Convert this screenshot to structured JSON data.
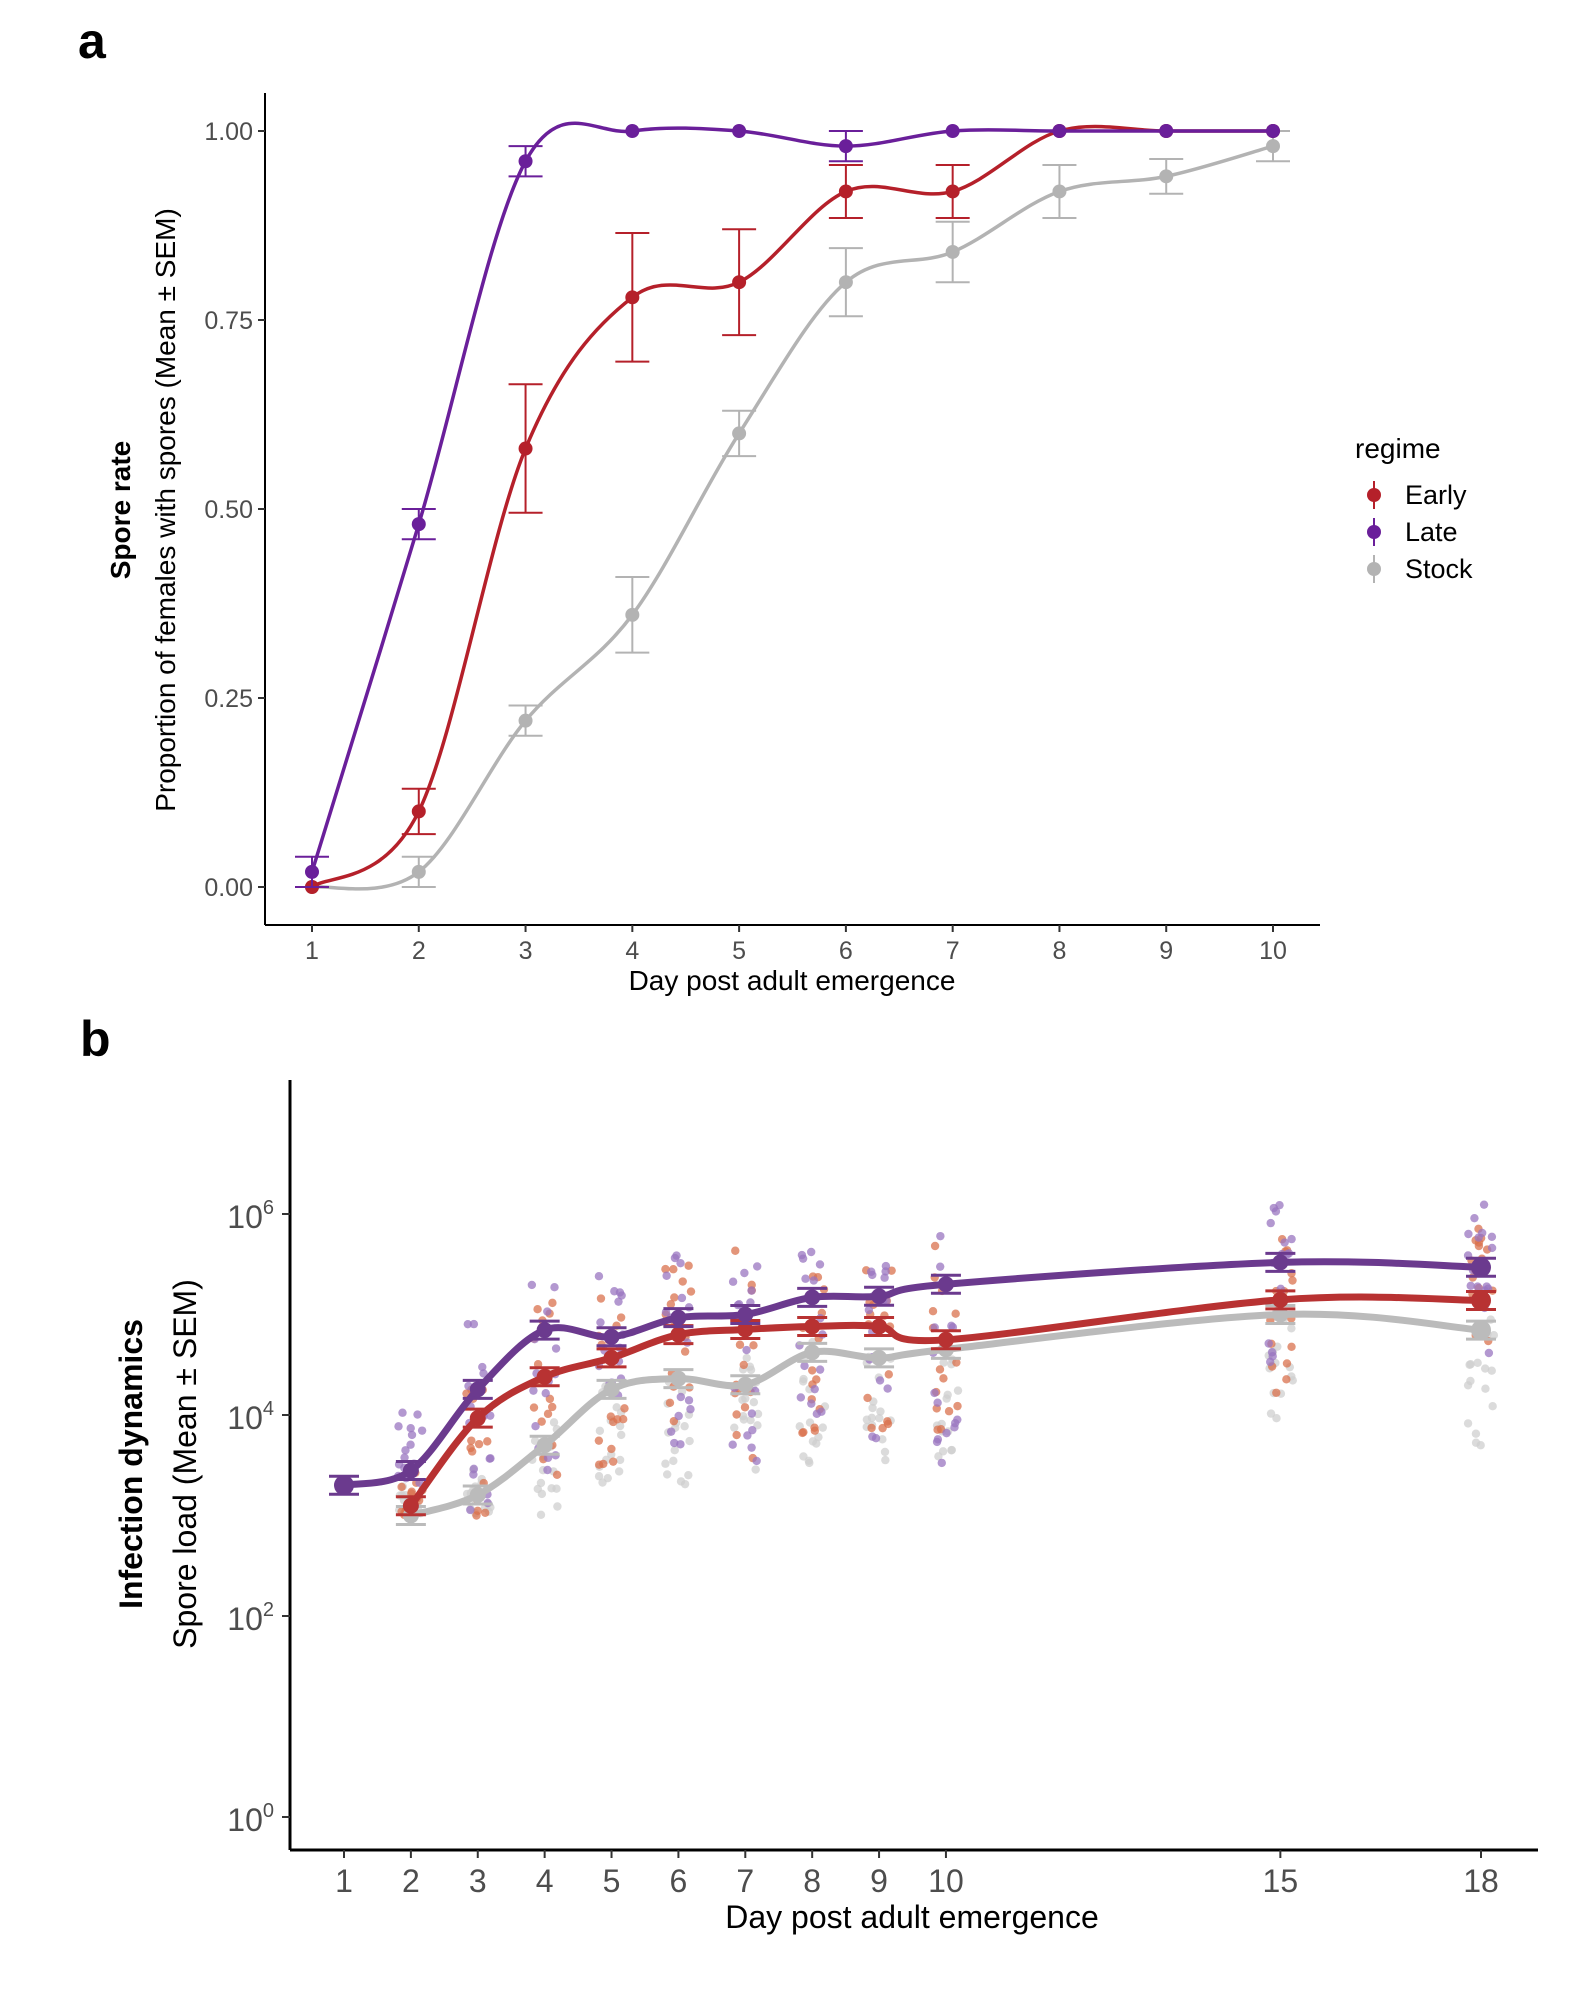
{
  "colors": {
    "Early": "#b5202a",
    "Late": "#6a1f9a",
    "Stock": "#b3b3b3",
    "Early_b": "#b83232",
    "Late_b": "#6b3a8e",
    "Stock_b": "#bbbbbb",
    "Early_raw": "#d9714d",
    "Late_raw": "#9a76c0",
    "Stock_raw": "#cfcfcf"
  },
  "chart_data": [
    {
      "panel_label": "a",
      "type": "line",
      "xlabel": "Day post adult emergence",
      "ylabel_bold": "Spore rate",
      "ylabel": "Proportion of females with spores (Mean ± SEM)",
      "x": [
        1,
        2,
        3,
        4,
        5,
        6,
        7,
        8,
        9,
        10
      ],
      "x_ticks": [
        "1",
        "2",
        "3",
        "4",
        "5",
        "6",
        "7",
        "8",
        "9",
        "10"
      ],
      "y_ticks": [
        "0.00",
        "0.25",
        "0.50",
        "0.75",
        "1.00"
      ],
      "ylim": [
        0,
        1
      ],
      "legend": {
        "title": "regime",
        "position": "right"
      },
      "series": [
        {
          "name": "Early",
          "values": [
            0,
            0.1,
            0.58,
            0.78,
            0.8,
            0.92,
            0.92,
            1.0,
            1.0,
            1.0
          ],
          "sem": [
            0,
            0.03,
            0.085,
            0.085,
            0.07,
            0.035,
            0.035,
            0,
            0,
            0
          ]
        },
        {
          "name": "Late",
          "values": [
            0.02,
            0.48,
            0.96,
            1.0,
            1.0,
            0.98,
            1.0,
            1.0,
            1.0,
            1.0
          ],
          "sem": [
            0.02,
            0.02,
            0.02,
            0,
            0,
            0.02,
            0,
            0,
            0,
            0
          ]
        },
        {
          "name": "Stock",
          "values": [
            0,
            0.02,
            0.22,
            0.36,
            0.6,
            0.8,
            0.84,
            0.92,
            0.94,
            0.98
          ],
          "sem": [
            0,
            0.02,
            0.02,
            0.05,
            0.03,
            0.045,
            0.04,
            0.035,
            0.023,
            0.02
          ]
        }
      ]
    },
    {
      "panel_label": "b",
      "type": "line",
      "xlabel": "Day post adult emergence",
      "ylabel_bold": "Infection dynamics",
      "ylabel": "Spore load (Mean ± SEM)",
      "y_scale": "log10",
      "y_ticks": [
        {
          "base": "10",
          "exp": "0",
          "value": 1
        },
        {
          "base": "10",
          "exp": "2",
          "value": 100
        },
        {
          "base": "10",
          "exp": "4",
          "value": 10000
        },
        {
          "base": "10",
          "exp": "6",
          "value": 1000000
        }
      ],
      "x_ticks": [
        "1",
        "2",
        "3",
        "4",
        "5",
        "6",
        "7",
        "8",
        "9",
        "10",
        "15",
        "18"
      ],
      "xlim": [
        0.5,
        18.7
      ],
      "ylim": [
        0.3,
        20000000
      ],
      "series": [
        {
          "name": "Late",
          "x": [
            1,
            2,
            3,
            4,
            5,
            6,
            7,
            8,
            9,
            10,
            15,
            18
          ],
          "values": [
            2000,
            2800,
            18000,
            70000,
            60000,
            93000,
            100000,
            148000,
            152000,
            200000,
            330000,
            295000
          ],
          "raw_range": [
            null,
            [
              2000,
              11000
            ],
            [
              1000,
              120000
            ],
            [
              2500,
              230000
            ],
            [
              10000,
              250000
            ],
            [
              5000,
              400000
            ],
            [
              3000,
              450000
            ],
            [
              10000,
              450000
            ],
            [
              3000,
              420000
            ],
            [
              3000,
              700000
            ],
            [
              25000,
              1300000
            ],
            [
              30000,
              1400000
            ]
          ]
        },
        {
          "name": "Early",
          "x": [
            2,
            3,
            4,
            5,
            6,
            7,
            8,
            9,
            10,
            15,
            18
          ],
          "values": [
            1250,
            9300,
            24000,
            37000,
            63000,
            71000,
            76000,
            76000,
            56000,
            140000,
            138000
          ],
          "raw_range": [
            [
              1000,
              3000
            ],
            [
              1000,
              40000
            ],
            [
              2500,
              150000
            ],
            [
              3000,
              300000
            ],
            [
              5000,
              350000
            ],
            [
              3000,
              450000
            ],
            [
              5000,
              350000
            ],
            [
              5000,
              300000
            ],
            [
              4000,
              550000
            ],
            [
              15000,
              1000000
            ],
            [
              40000,
              900000
            ]
          ]
        },
        {
          "name": "Stock",
          "x": [
            2,
            3,
            4,
            5,
            6,
            7,
            8,
            9,
            10,
            15,
            18
          ],
          "values": [
            1000,
            1600,
            5000,
            18000,
            23000,
            20000,
            42000,
            37000,
            45000,
            100000,
            70000
          ],
          "raw_range": [
            [
              1000,
              2000
            ],
            [
              1000,
              3000
            ],
            [
              1000,
              10000
            ],
            [
              2000,
              25000
            ],
            [
              2000,
              40000
            ],
            [
              2000,
              40000
            ],
            [
              3000,
              60000
            ],
            [
              3000,
              50000
            ],
            [
              3000,
              60000
            ],
            [
              8000,
              150000
            ],
            [
              5000,
              100000
            ]
          ]
        }
      ]
    }
  ]
}
